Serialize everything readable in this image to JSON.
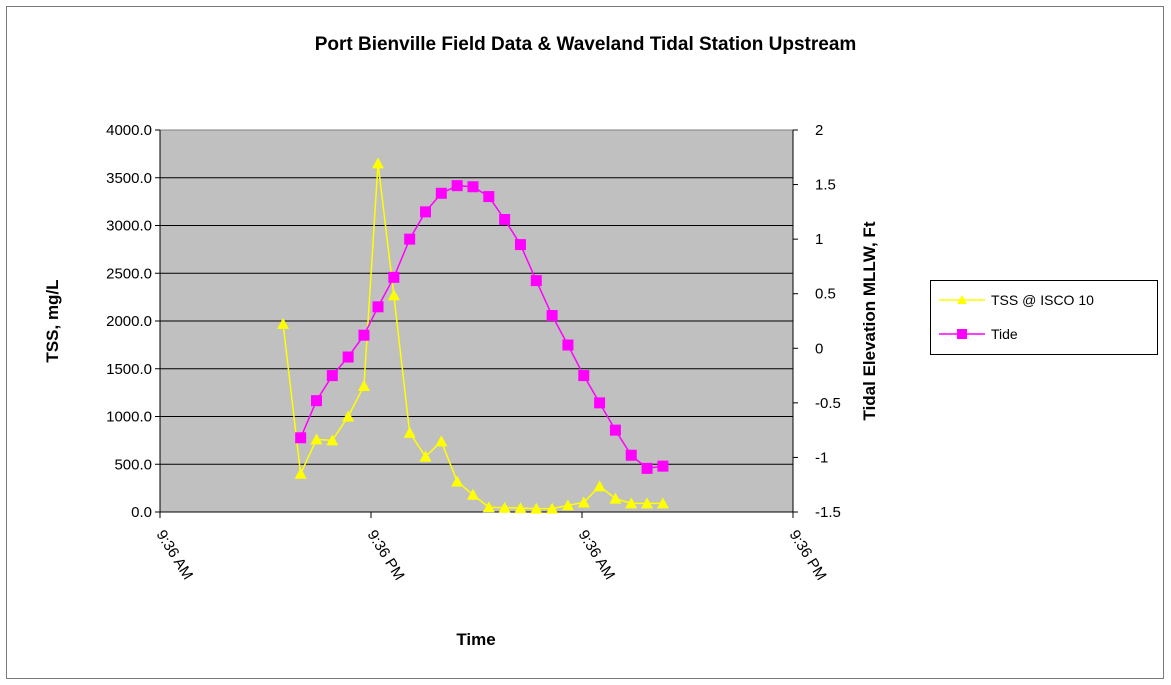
{
  "chart_data": {
    "type": "line",
    "title": "Port Bienville Field Data & Waveland Tidal Station Upstream",
    "xlabel": "Time",
    "ylabel": "TSS, mg/L",
    "y2label": "Tidal Elevation MLLW, Ft",
    "x_tick_labels": [
      "9:36 AM",
      "9:36 PM",
      "9:36 AM",
      "9:36 PM"
    ],
    "y_ticks": [
      "0.0",
      "500.0",
      "1000.0",
      "1500.0",
      "2000.0",
      "2500.0",
      "3000.0",
      "3500.0",
      "4000.0"
    ],
    "y2_ticks": [
      "-1.5",
      "-1",
      "-0.5",
      "0",
      "0.5",
      "1",
      "1.5",
      "2"
    ],
    "ylim": [
      0,
      4000
    ],
    "y2lim": [
      -1.5,
      2
    ],
    "x_hours_range": [
      0,
      36
    ],
    "grid": true,
    "legend_position": "right",
    "colors": {
      "plot_bg": "#c0c0c0",
      "tss": "#ffff00",
      "tide": "#ff00ff"
    },
    "series": [
      {
        "name": "TSS @ ISCO 10",
        "axis": "left",
        "marker": "triangle",
        "x": [
          7.0,
          8.0,
          8.9,
          9.8,
          10.7,
          11.6,
          12.4,
          13.3,
          14.2,
          15.1,
          16.0,
          16.9,
          17.8,
          18.7,
          19.6,
          20.5,
          21.4,
          22.3,
          23.2,
          24.1,
          25.0,
          25.9,
          26.8,
          27.7,
          28.6
        ],
        "values": [
          1970,
          400,
          760,
          750,
          1000,
          1320,
          3650,
          2270,
          830,
          580,
          740,
          320,
          180,
          50,
          45,
          40,
          35,
          35,
          70,
          100,
          270,
          140,
          90,
          90,
          90
        ]
      },
      {
        "name": "Tide",
        "axis": "right",
        "marker": "square",
        "x": [
          8.0,
          8.9,
          9.8,
          10.7,
          11.6,
          12.4,
          13.3,
          14.2,
          15.1,
          16.0,
          16.9,
          17.8,
          18.7,
          19.6,
          20.5,
          21.4,
          22.3,
          23.2,
          24.1,
          25.0,
          25.9,
          26.8,
          27.7,
          28.6
        ],
        "values": [
          -0.82,
          -0.48,
          -0.25,
          -0.08,
          0.12,
          0.38,
          0.65,
          1.0,
          1.25,
          1.42,
          1.49,
          1.48,
          1.39,
          1.18,
          0.95,
          0.62,
          0.3,
          0.03,
          -0.25,
          -0.5,
          -0.75,
          -0.98,
          -1.1,
          -1.08
        ]
      }
    ]
  }
}
